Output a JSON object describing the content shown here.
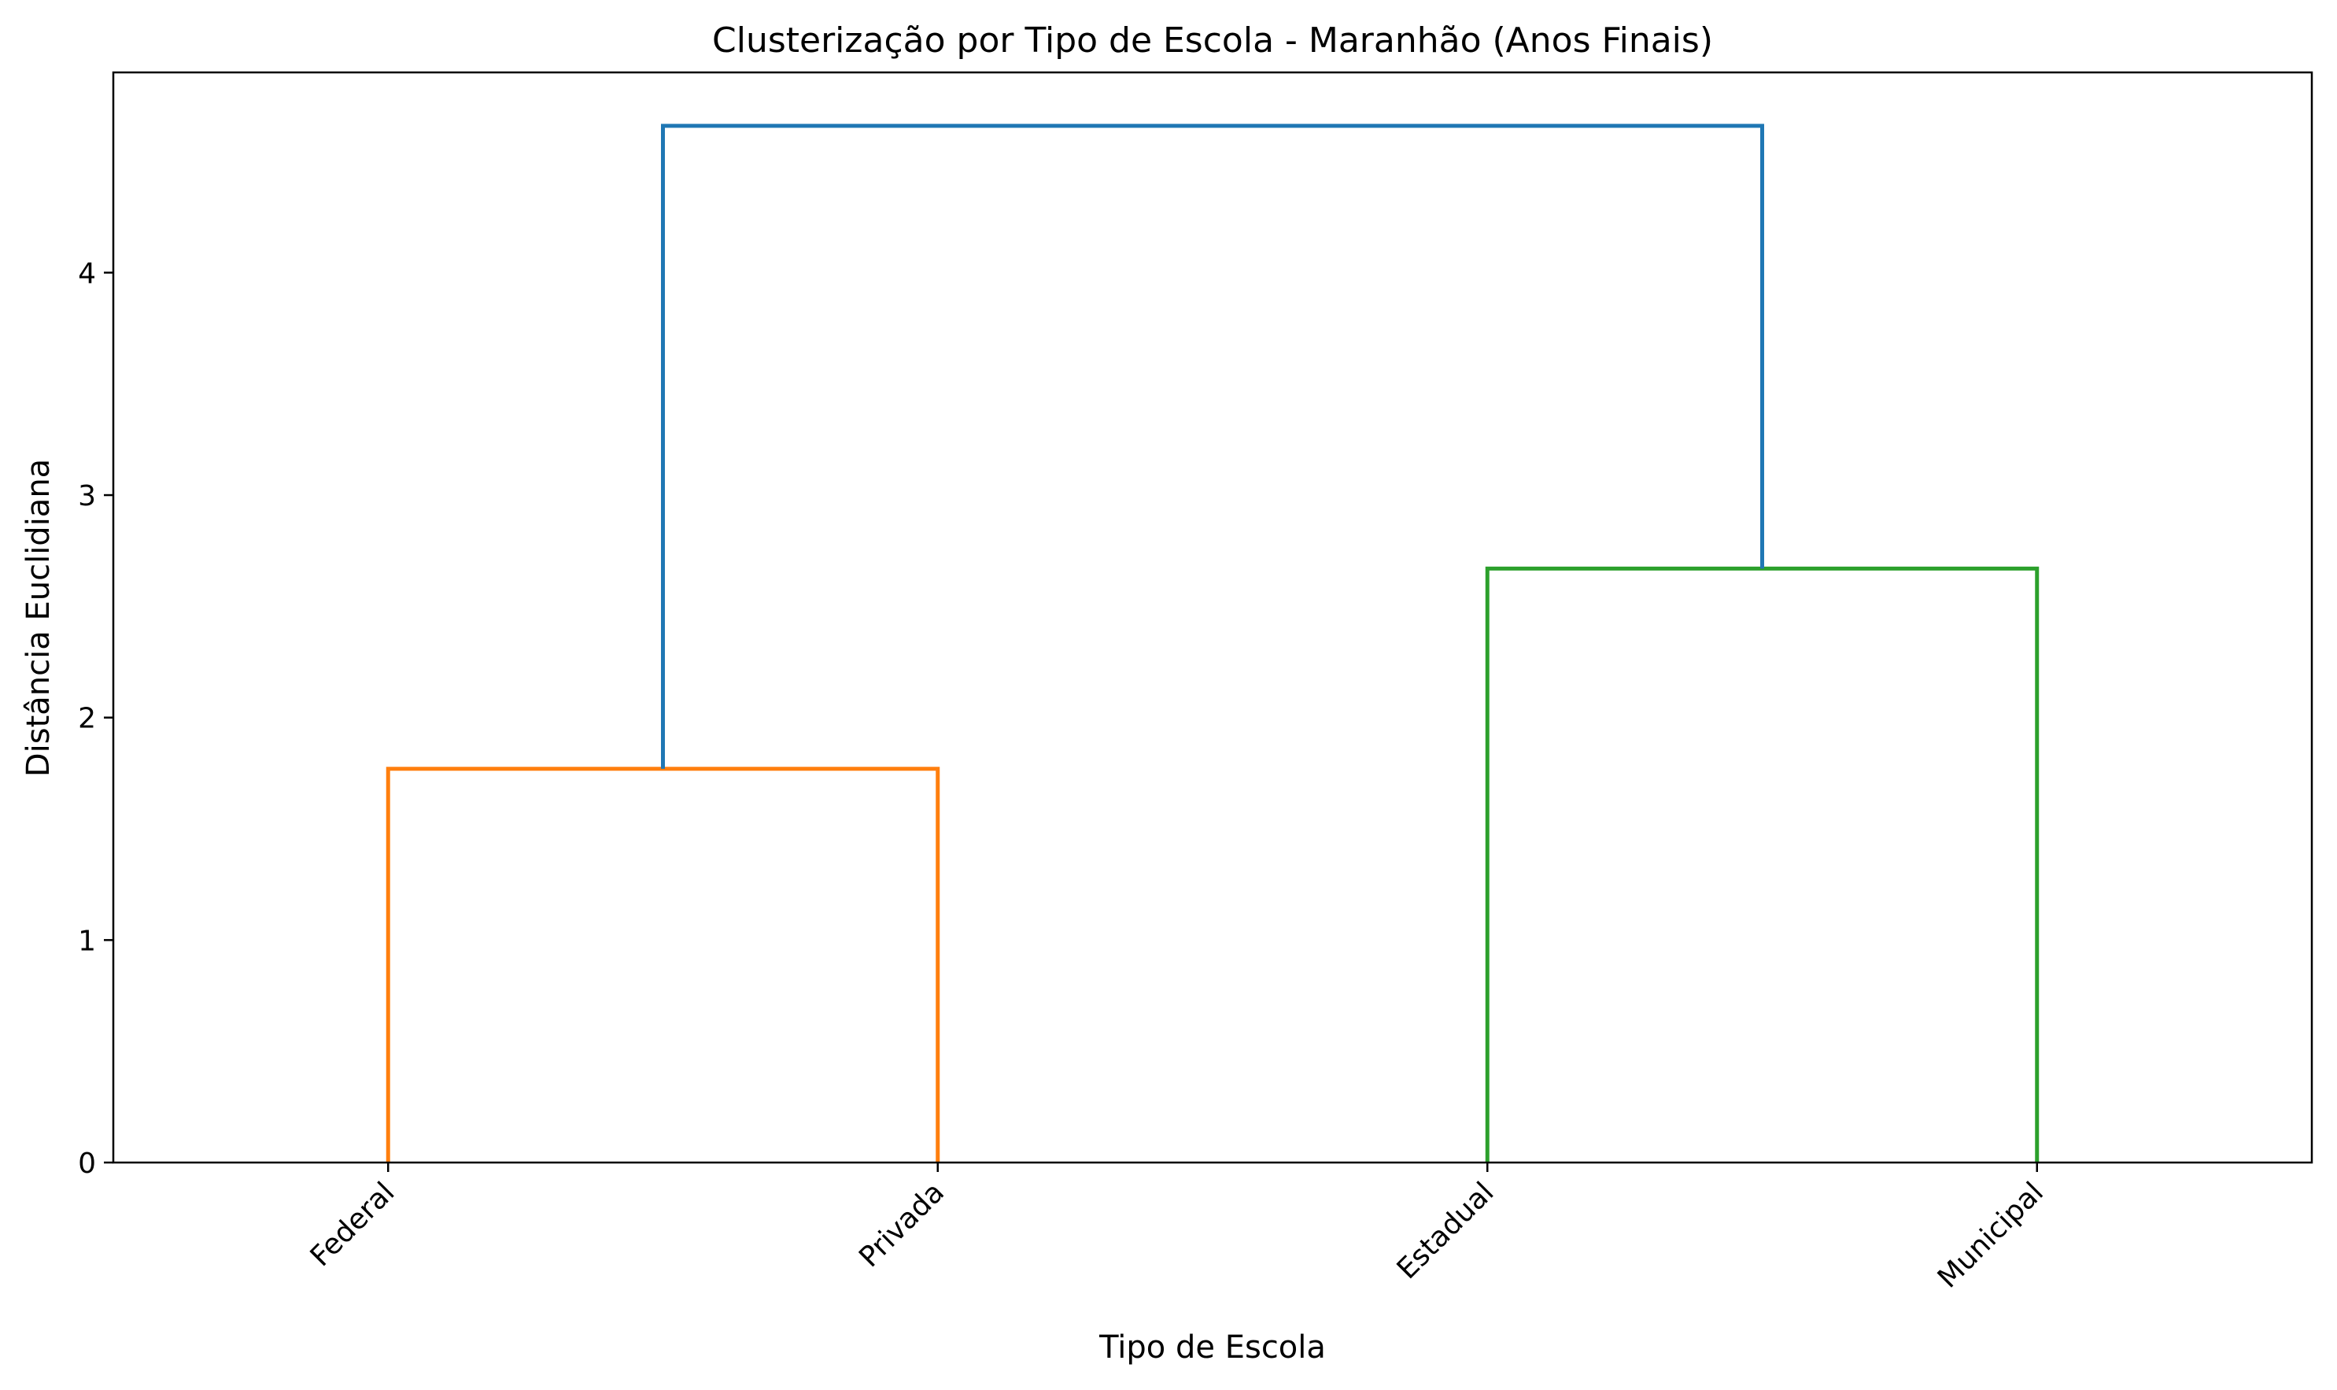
{
  "chart_data": {
    "type": "dendrogram",
    "title": "Clusterização por Tipo de Escola - Maranhão (Anos Finais)",
    "xlabel": "Tipo de Escola",
    "ylabel": "Distância Euclidiana",
    "leaves": [
      "Federal",
      "Privada",
      "Estadual",
      "Municipal"
    ],
    "yticks": [
      0,
      1,
      2,
      3,
      4
    ],
    "ylim": [
      0,
      4.9
    ],
    "grid": false,
    "links": [
      {
        "left": "Federal",
        "right": "Privada",
        "distance": 1.77,
        "color": "#ff7f0e"
      },
      {
        "left": "Estadual",
        "right": "Municipal",
        "distance": 2.67,
        "color": "#2ca02c"
      },
      {
        "left": "Federal+Privada",
        "right": "Estadual+Municipal",
        "distance": 4.66,
        "color": "#1f77b4"
      }
    ]
  }
}
